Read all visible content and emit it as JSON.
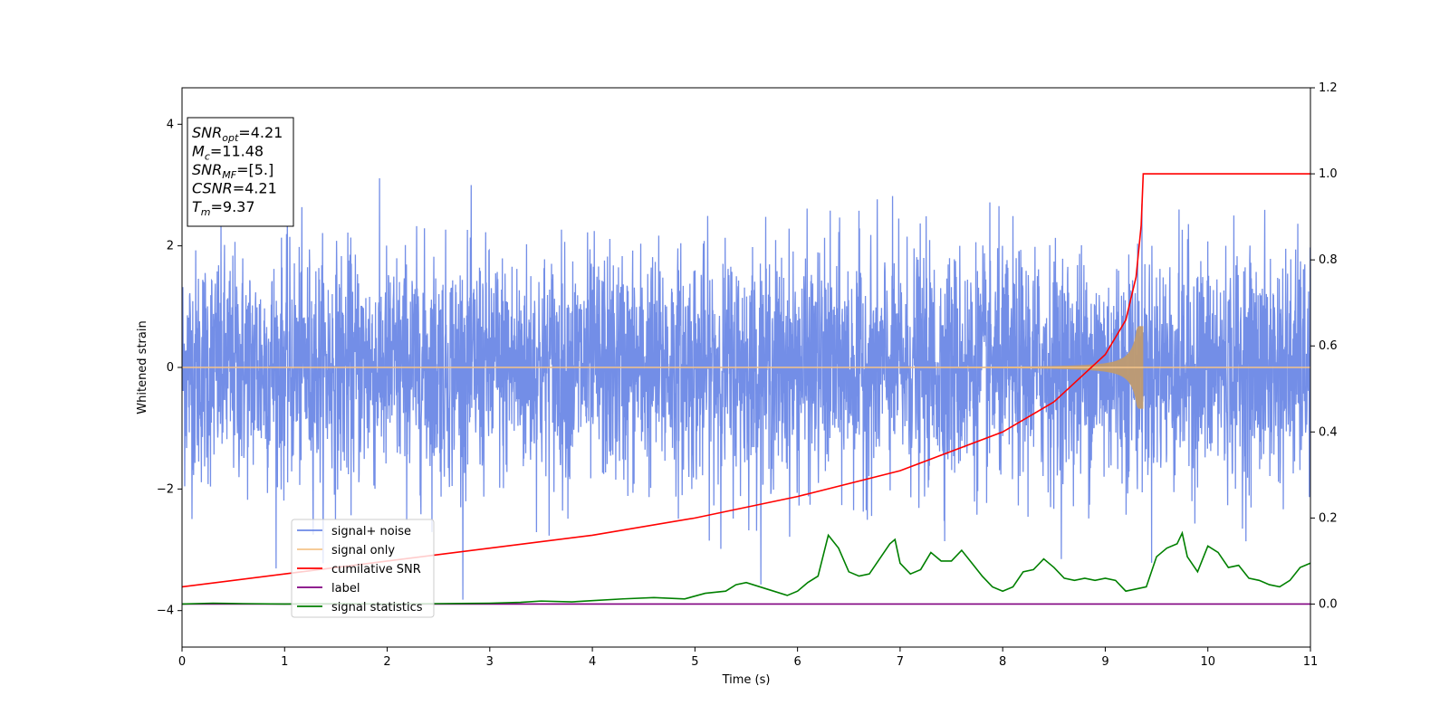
{
  "chart_data": {
    "type": "line",
    "xlabel": "Time (s)",
    "ylabel": "Whitened strain",
    "xlim": [
      0,
      11
    ],
    "ylim": [
      -4.6,
      4.6
    ],
    "y2lim": [
      -0.1,
      1.2
    ],
    "x_ticks": [
      "0",
      "1",
      "2",
      "3",
      "4",
      "5",
      "6",
      "7",
      "8",
      "9",
      "10",
      "11"
    ],
    "y_ticks": [
      "4",
      "2",
      "0",
      "−2",
      "−4"
    ],
    "y2_ticks": [
      "1.2",
      "1.0",
      "0.8",
      "0.6",
      "0.4",
      "0.2",
      "0.0"
    ],
    "info_box": [
      {
        "main": "SNR",
        "sub": "opt",
        "rest": "=4.21"
      },
      {
        "main": "M",
        "sub": "c",
        "rest": "=11.48"
      },
      {
        "main": "SNR",
        "sub": "MF",
        "rest": "=[5.]"
      },
      {
        "main": "CSNR",
        "sub": "",
        "rest": "=4.21"
      },
      {
        "main": "T",
        "sub": "m",
        "rest": "=9.37"
      }
    ],
    "legend_position": "lower-left",
    "series": [
      {
        "name": "signal+ noise",
        "color": "#6b88e6",
        "axis": "left",
        "kind": "noise",
        "amplitude_std": 0.95,
        "x_range": [
          0,
          11
        ]
      },
      {
        "name": "signal only",
        "color": "#f5c48a",
        "axis": "left",
        "kind": "chirp",
        "merger_time": 9.37,
        "peak_amplitude": 0.68
      },
      {
        "name": "cumilative SNR",
        "color": "#ff0000",
        "axis": "right",
        "x": [
          0,
          1,
          2,
          3,
          4,
          5,
          6,
          7,
          8,
          8.5,
          9,
          9.2,
          9.3,
          9.35,
          9.37,
          11
        ],
        "y": [
          0.04,
          0.07,
          0.1,
          0.13,
          0.16,
          0.2,
          0.25,
          0.31,
          0.4,
          0.47,
          0.58,
          0.66,
          0.76,
          0.88,
          1.0,
          1.0
        ]
      },
      {
        "name": "label",
        "color": "#800080",
        "axis": "right",
        "x": [
          0,
          11
        ],
        "y": [
          0.0,
          0.0
        ]
      },
      {
        "name": "signal statistics",
        "color": "#008000",
        "axis": "right",
        "x": [
          0,
          0.3,
          0.6,
          1,
          1.5,
          2,
          2.5,
          3,
          3.3,
          3.5,
          3.8,
          4,
          4.3,
          4.6,
          4.9,
          5.1,
          5.3,
          5.4,
          5.5,
          5.7,
          5.9,
          6.0,
          6.1,
          6.2,
          6.3,
          6.4,
          6.5,
          6.6,
          6.7,
          6.8,
          6.9,
          6.95,
          7.0,
          7.1,
          7.2,
          7.3,
          7.4,
          7.5,
          7.6,
          7.7,
          7.8,
          7.9,
          8.0,
          8.1,
          8.2,
          8.3,
          8.4,
          8.5,
          8.6,
          8.7,
          8.8,
          8.9,
          9.0,
          9.1,
          9.2,
          9.3,
          9.4,
          9.5,
          9.6,
          9.7,
          9.75,
          9.8,
          9.9,
          10.0,
          10.1,
          10.2,
          10.3,
          10.4,
          10.5,
          10.6,
          10.7,
          10.8,
          10.9,
          11.0
        ],
        "y": [
          0.0,
          0.002,
          0.001,
          0.0,
          0.001,
          0.0,
          0.001,
          0.002,
          0.004,
          0.007,
          0.005,
          0.008,
          0.012,
          0.015,
          0.012,
          0.025,
          0.03,
          0.045,
          0.05,
          0.035,
          0.02,
          0.03,
          0.05,
          0.065,
          0.16,
          0.13,
          0.075,
          0.065,
          0.07,
          0.105,
          0.14,
          0.15,
          0.095,
          0.07,
          0.08,
          0.12,
          0.1,
          0.1,
          0.125,
          0.095,
          0.065,
          0.04,
          0.03,
          0.04,
          0.075,
          0.08,
          0.105,
          0.085,
          0.06,
          0.055,
          0.06,
          0.055,
          0.06,
          0.055,
          0.03,
          0.035,
          0.04,
          0.11,
          0.13,
          0.14,
          0.165,
          0.11,
          0.075,
          0.135,
          0.12,
          0.085,
          0.09,
          0.06,
          0.055,
          0.045,
          0.04,
          0.055,
          0.085,
          0.095
        ]
      }
    ]
  }
}
